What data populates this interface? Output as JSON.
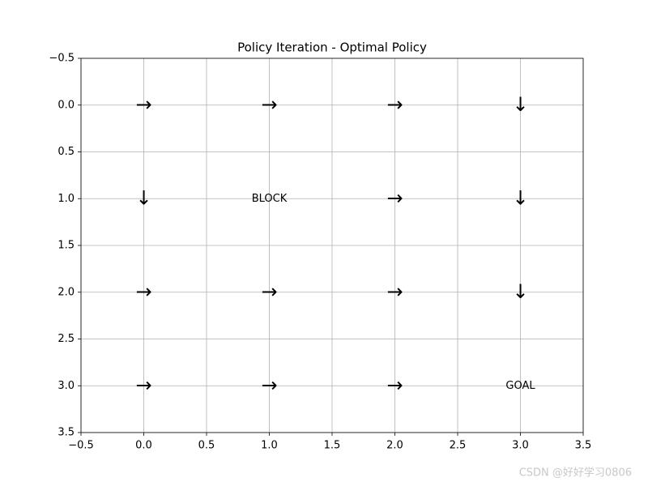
{
  "chart_data": {
    "type": "text",
    "title": "Policy Iteration - Optimal Policy",
    "xlim": [
      -0.5,
      3.5
    ],
    "ylim": [
      -0.5,
      3.5
    ],
    "y_inverted": true,
    "grid": true,
    "xticks": [
      {
        "value": -0.5,
        "label": "−0.5"
      },
      {
        "value": 0,
        "label": "0.0"
      },
      0.5,
      {
        "value": 1,
        "label": "1.0"
      },
      1.5,
      {
        "value": 2,
        "label": "2.0"
      },
      2.5,
      {
        "value": 3,
        "label": "3.0"
      },
      3.5
    ],
    "yticks": [
      {
        "value": -0.5,
        "label": "−0.5"
      },
      {
        "value": 0,
        "label": "0.0"
      },
      0.5,
      {
        "value": 1,
        "label": "1.0"
      },
      1.5,
      {
        "value": 2,
        "label": "2.0"
      },
      2.5,
      {
        "value": 3,
        "label": "3.0"
      },
      3.5
    ],
    "annotations": [
      {
        "x": 0,
        "y": 0,
        "text": "→"
      },
      {
        "x": 1,
        "y": 0,
        "text": "→"
      },
      {
        "x": 2,
        "y": 0,
        "text": "→"
      },
      {
        "x": 3,
        "y": 0,
        "text": "↓"
      },
      {
        "x": 0,
        "y": 1,
        "text": "↓"
      },
      {
        "x": 1,
        "y": 1,
        "text": "BLOCK"
      },
      {
        "x": 2,
        "y": 1,
        "text": "→"
      },
      {
        "x": 3,
        "y": 1,
        "text": "↓"
      },
      {
        "x": 0,
        "y": 2,
        "text": "→"
      },
      {
        "x": 1,
        "y": 2,
        "text": "→"
      },
      {
        "x": 2,
        "y": 2,
        "text": "→"
      },
      {
        "x": 3,
        "y": 2,
        "text": "↓"
      },
      {
        "x": 0,
        "y": 3,
        "text": "→"
      },
      {
        "x": 1,
        "y": 3,
        "text": "→"
      },
      {
        "x": 2,
        "y": 3,
        "text": "→"
      },
      {
        "x": 3,
        "y": 3,
        "text": "GOAL"
      }
    ],
    "watermark": "CSDN @好好学习0806"
  }
}
